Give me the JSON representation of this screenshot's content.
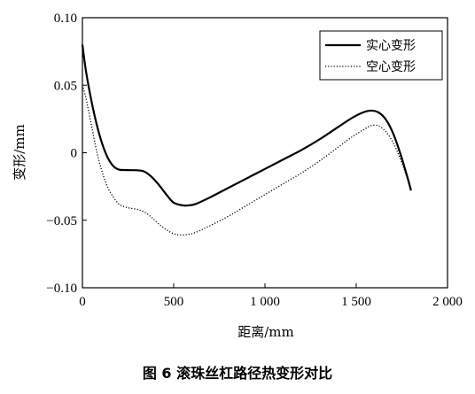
{
  "caption": "图 6  滚珠丝杠路径热变形对比",
  "chart_data": {
    "type": "line",
    "xlabel": "距离/mm",
    "ylabel": "变形/mm",
    "xlim": [
      0,
      2000
    ],
    "ylim": [
      -0.1,
      0.1
    ],
    "x_ticks": [
      0,
      500,
      1000,
      1500,
      2000
    ],
    "x_tick_labels": [
      "0",
      "500",
      "1 000",
      "1 500",
      "2 000"
    ],
    "y_ticks": [
      0.1,
      0.05,
      0,
      -0.05,
      -0.1
    ],
    "y_tick_labels": [
      "0.10",
      "0.05",
      "0",
      "−0.05",
      "−0.10"
    ],
    "grid": false,
    "legend_position": "top-right",
    "series": [
      {
        "name": "实心变形",
        "style": "solid",
        "color": "#000000",
        "x": [
          0,
          20,
          50,
          80,
          110,
          140,
          170,
          200,
          230,
          260,
          300,
          340,
          380,
          420,
          460,
          500,
          550,
          580,
          620,
          700,
          800,
          900,
          1000,
          1100,
          1200,
          1300,
          1400,
          1480,
          1540,
          1580,
          1620,
          1660,
          1700,
          1740,
          1780,
          1800
        ],
        "y": [
          0.08,
          0.06,
          0.038,
          0.02,
          0.006,
          -0.004,
          -0.01,
          -0.0125,
          -0.0128,
          -0.0129,
          -0.013,
          -0.014,
          -0.018,
          -0.024,
          -0.031,
          -0.037,
          -0.039,
          -0.039,
          -0.038,
          -0.033,
          -0.026,
          -0.019,
          -0.012,
          -0.005,
          0.002,
          0.01,
          0.019,
          0.026,
          0.03,
          0.0312,
          0.03,
          0.025,
          0.015,
          0.0,
          -0.018,
          -0.028
        ]
      },
      {
        "name": "空心变形",
        "style": "dotted",
        "color": "#000000",
        "x": [
          0,
          20,
          50,
          80,
          110,
          140,
          170,
          200,
          230,
          260,
          300,
          340,
          380,
          420,
          460,
          500,
          540,
          580,
          620,
          700,
          800,
          900,
          1000,
          1100,
          1200,
          1300,
          1400,
          1480,
          1540,
          1580,
          1620,
          1660,
          1700,
          1740,
          1780,
          1800
        ],
        "y": [
          0.05,
          0.04,
          0.02,
          0.0,
          -0.015,
          -0.026,
          -0.033,
          -0.038,
          -0.04,
          -0.041,
          -0.042,
          -0.044,
          -0.048,
          -0.053,
          -0.057,
          -0.06,
          -0.061,
          -0.0605,
          -0.059,
          -0.054,
          -0.047,
          -0.039,
          -0.031,
          -0.023,
          -0.015,
          -0.006,
          0.004,
          0.012,
          0.017,
          0.02,
          0.02,
          0.016,
          0.008,
          -0.004,
          -0.019,
          -0.027
        ]
      }
    ]
  }
}
